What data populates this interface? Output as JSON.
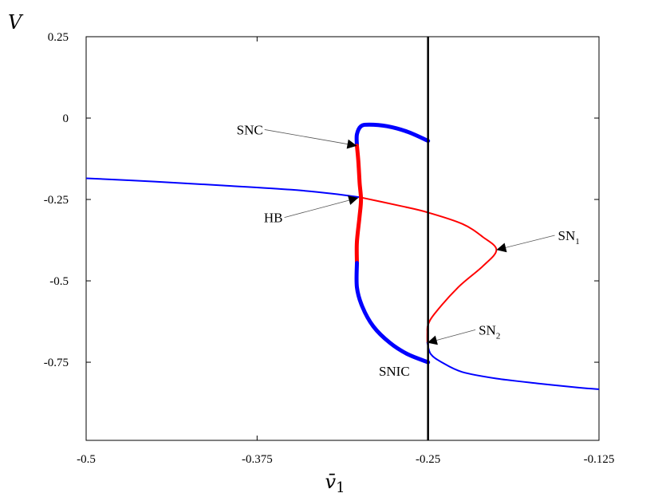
{
  "chart_data": {
    "type": "line",
    "xlabel": "v̄",
    "xlabel_sub": "1",
    "ylabel": "V",
    "xlim": [
      -0.5,
      -0.125
    ],
    "ylim": [
      -0.99,
      0.25
    ],
    "xticks": [
      -0.5,
      -0.375,
      -0.25,
      -0.125
    ],
    "xtick_labels": [
      "-0.5",
      "-0.375",
      "-0.25",
      "-0.125"
    ],
    "yticks": [
      0.25,
      0,
      -0.25,
      -0.5,
      -0.75
    ],
    "ytick_labels": [
      "0.25",
      "0",
      "-0.25",
      "-0.5",
      "-0.75"
    ],
    "grid": false,
    "vertical_line_x": -0.25,
    "series": [
      {
        "role": "stable-equilibria-upper",
        "color": "#0000ff",
        "width": "thin",
        "points": [
          [
            -0.5,
            -0.185
          ],
          [
            -0.45,
            -0.195
          ],
          [
            -0.4,
            -0.207
          ],
          [
            -0.35,
            -0.22
          ],
          [
            -0.32,
            -0.232
          ],
          [
            -0.3,
            -0.243
          ]
        ]
      },
      {
        "role": "unstable-equilibria",
        "color": "#ff0000",
        "width": "thin",
        "points": [
          [
            -0.3,
            -0.243
          ],
          [
            -0.27,
            -0.27
          ],
          [
            -0.25,
            -0.29
          ],
          [
            -0.225,
            -0.325
          ],
          [
            -0.21,
            -0.365
          ],
          [
            -0.2,
            -0.405
          ],
          [
            -0.21,
            -0.455
          ],
          [
            -0.228,
            -0.52
          ],
          [
            -0.245,
            -0.6
          ],
          [
            -0.25,
            -0.635
          ],
          [
            -0.2505,
            -0.66
          ],
          [
            -0.2505,
            -0.69
          ]
        ]
      },
      {
        "role": "stable-equilibria-lower",
        "color": "#0000ff",
        "width": "thin",
        "points": [
          [
            -0.2505,
            -0.69
          ],
          [
            -0.248,
            -0.725
          ],
          [
            -0.24,
            -0.75
          ],
          [
            -0.225,
            -0.78
          ],
          [
            -0.2,
            -0.8
          ],
          [
            -0.17,
            -0.815
          ],
          [
            -0.14,
            -0.828
          ],
          [
            -0.125,
            -0.833
          ]
        ]
      },
      {
        "role": "stable-periodic-upper",
        "color": "#0000ff",
        "width": "thick",
        "points": [
          [
            -0.302,
            -0.085
          ],
          [
            -0.302,
            -0.05
          ],
          [
            -0.299,
            -0.025
          ],
          [
            -0.293,
            -0.02
          ],
          [
            -0.28,
            -0.025
          ],
          [
            -0.265,
            -0.042
          ],
          [
            -0.25,
            -0.07
          ]
        ]
      },
      {
        "role": "unstable-periodic",
        "color": "#ff0000",
        "width": "thick",
        "points": [
          [
            -0.302,
            -0.085
          ],
          [
            -0.301,
            -0.13
          ],
          [
            -0.3,
            -0.2
          ],
          [
            -0.299,
            -0.25
          ],
          [
            -0.3,
            -0.3
          ],
          [
            -0.302,
            -0.38
          ],
          [
            -0.302,
            -0.445
          ]
        ]
      },
      {
        "role": "stable-periodic-lower",
        "color": "#0000ff",
        "width": "thick",
        "points": [
          [
            -0.302,
            -0.445
          ],
          [
            -0.302,
            -0.52
          ],
          [
            -0.298,
            -0.58
          ],
          [
            -0.29,
            -0.64
          ],
          [
            -0.278,
            -0.69
          ],
          [
            -0.265,
            -0.725
          ],
          [
            -0.25,
            -0.75
          ]
        ]
      }
    ],
    "annotations": [
      {
        "text": "SNC",
        "sub": "",
        "point": [
          -0.302,
          -0.085
        ],
        "label_at": [
          -0.39,
          -0.05
        ],
        "align": "left"
      },
      {
        "text": "HB",
        "sub": "",
        "point": [
          -0.301,
          -0.245
        ],
        "label_at": [
          -0.37,
          -0.32
        ],
        "align": "left"
      },
      {
        "text": "SN",
        "sub": "1",
        "point": [
          -0.2,
          -0.405
        ],
        "label_at": [
          -0.155,
          -0.375
        ],
        "align": "left"
      },
      {
        "text": "SN",
        "sub": "2",
        "point": [
          -0.2505,
          -0.69
        ],
        "label_at": [
          -0.213,
          -0.665
        ],
        "align": "left"
      },
      {
        "text": "SNIC",
        "sub": "",
        "point": null,
        "label_at": [
          -0.286,
          -0.792
        ],
        "align": "left"
      }
    ]
  }
}
